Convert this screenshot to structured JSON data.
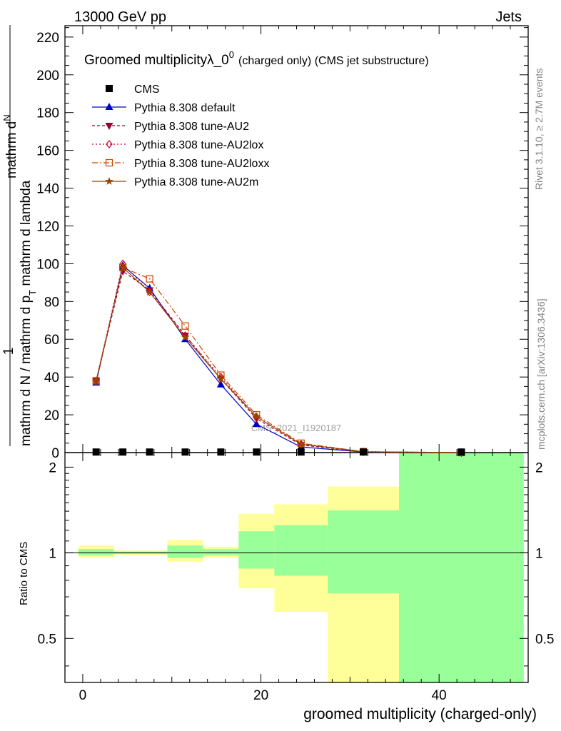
{
  "header": {
    "left": "13000 GeV pp",
    "right": "Jets"
  },
  "side_labels": {
    "rivet": "Rivet 3.1.10, ≥ 2.7M events",
    "mcplots": "mcplots.cern.ch [arXiv:1306.3436]"
  },
  "chart_data": {
    "type": "line",
    "title": "Groomed multiplicityλ_0",
    "title_sup": "0",
    "title_suffix": "(charged only) (CMS jet substructure)",
    "watermark": "CMS_2021_I1920187",
    "ylabel_top": {
      "numer_prefix": "1",
      "numer_main": "mathrm d",
      "numer_suffix": "N",
      "denom_prefix": "mathrm d N / mathrm d p",
      "denom_sub": "T",
      "denom_suffix": " mathrm d lambda"
    },
    "ylabel_bottom": "Ratio to CMS",
    "xlabel": "groomed multiplicity (charged-only)",
    "xlim": [
      -2,
      50
    ],
    "ylim_top": [
      0,
      226
    ],
    "yticks_top": [
      "0",
      "20",
      "40",
      "60",
      "80",
      "100",
      "120",
      "140",
      "160",
      "180",
      "200",
      "220"
    ],
    "ylim_bottom": [
      0.35,
      2.25
    ],
    "yticks_bottom": [
      "0.5",
      "1",
      "2"
    ],
    "xticks": [
      "0",
      "20",
      "40"
    ],
    "legend": {
      "position": "top-left",
      "entries": [
        {
          "label": "CMS",
          "color": "#000000",
          "marker": "square"
        },
        {
          "label": "Pythia 8.308 default",
          "color": "#0000cc",
          "marker": "triangle-up",
          "dash": "none"
        },
        {
          "label": "Pythia 8.308 tune-AU2",
          "color": "#990033",
          "marker": "triangle-down",
          "dash": "4,3"
        },
        {
          "label": "Pythia 8.308 tune-AU2lox",
          "color": "#cc0033",
          "marker": "diamond-open",
          "dash": "2,3"
        },
        {
          "label": "Pythia 8.308 tune-AU2loxx",
          "color": "#cc4400",
          "marker": "square-open",
          "dash": "8,3,2,3"
        },
        {
          "label": "Pythia 8.308 tune-AU2m",
          "color": "#994400",
          "marker": "star",
          "dash": "none"
        }
      ]
    },
    "cms_x": [
      1.5,
      4.5,
      7.5,
      11.5,
      15.5,
      19.5,
      24.5,
      31.5,
      42.5
    ],
    "cms_y": [
      0.3,
      0.3,
      0.3,
      0.3,
      0.3,
      0.3,
      0.3,
      0.3,
      0.3
    ],
    "series": [
      {
        "name": "Pythia 8.308 default",
        "x": [
          1.5,
          4.5,
          7.5,
          11.5,
          15.5,
          19.5,
          24.5,
          31.5,
          42.5
        ],
        "y": [
          37,
          99,
          87,
          60,
          36,
          15,
          3,
          0.3,
          0
        ]
      },
      {
        "name": "Pythia 8.308 tune-AU2",
        "x": [
          1.5,
          4.5,
          7.5,
          11.5,
          15.5,
          19.5,
          24.5,
          31.5,
          42.5
        ],
        "y": [
          38,
          96,
          86,
          62,
          39,
          18,
          4,
          0.4,
          0
        ]
      },
      {
        "name": "Pythia 8.308 tune-AU2lox",
        "x": [
          1.5,
          4.5,
          7.5,
          11.5,
          15.5,
          19.5,
          24.5,
          31.5,
          42.5
        ],
        "y": [
          38,
          100,
          85,
          62,
          40,
          19,
          4.5,
          0.5,
          0
        ]
      },
      {
        "name": "Pythia 8.308 tune-AU2loxx",
        "x": [
          1.5,
          4.5,
          7.5,
          11.5,
          15.5,
          19.5,
          24.5,
          31.5,
          42.5
        ],
        "y": [
          38,
          98,
          92,
          67,
          41,
          20,
          5,
          0.5,
          0
        ]
      },
      {
        "name": "Pythia 8.308 tune-AU2m",
        "x": [
          1.5,
          4.5,
          7.5,
          11.5,
          15.5,
          19.5,
          24.5,
          31.5,
          42.5
        ],
        "y": [
          38,
          98,
          85,
          61,
          39,
          19,
          4.5,
          0.4,
          0
        ]
      }
    ],
    "ratio_bins": [
      {
        "x_low": -0.5,
        "x_high": 3.5,
        "yellow": [
          0.96,
          1.06
        ],
        "green": [
          0.98,
          1.03
        ]
      },
      {
        "x_low": 3.5,
        "x_high": 9.5,
        "yellow": [
          0.98,
          1.02
        ],
        "green": [
          0.99,
          1.01
        ]
      },
      {
        "x_low": 9.5,
        "x_high": 13.5,
        "yellow": [
          0.93,
          1.11
        ],
        "green": [
          0.96,
          1.06
        ]
      },
      {
        "x_low": 13.5,
        "x_high": 17.5,
        "yellow": [
          0.96,
          1.05
        ],
        "green": [
          0.98,
          1.03
        ]
      },
      {
        "x_low": 17.5,
        "x_high": 21.5,
        "yellow": [
          0.75,
          1.37
        ],
        "green": [
          0.88,
          1.19
        ]
      },
      {
        "x_low": 21.5,
        "x_high": 27.5,
        "yellow": [
          0.62,
          1.48
        ],
        "green": [
          0.83,
          1.25
        ]
      },
      {
        "x_low": 27.5,
        "x_high": 35.5,
        "yellow": [
          0.35,
          1.71
        ],
        "green": [
          0.72,
          1.41
        ]
      },
      {
        "x_low": 35.5,
        "x_high": 49.5,
        "yellow": [
          0.35,
          2.25
        ],
        "green": [
          0.35,
          2.25
        ]
      }
    ],
    "colors": {
      "band_yellow": "#ffff99",
      "band_green": "#99ff99"
    }
  }
}
